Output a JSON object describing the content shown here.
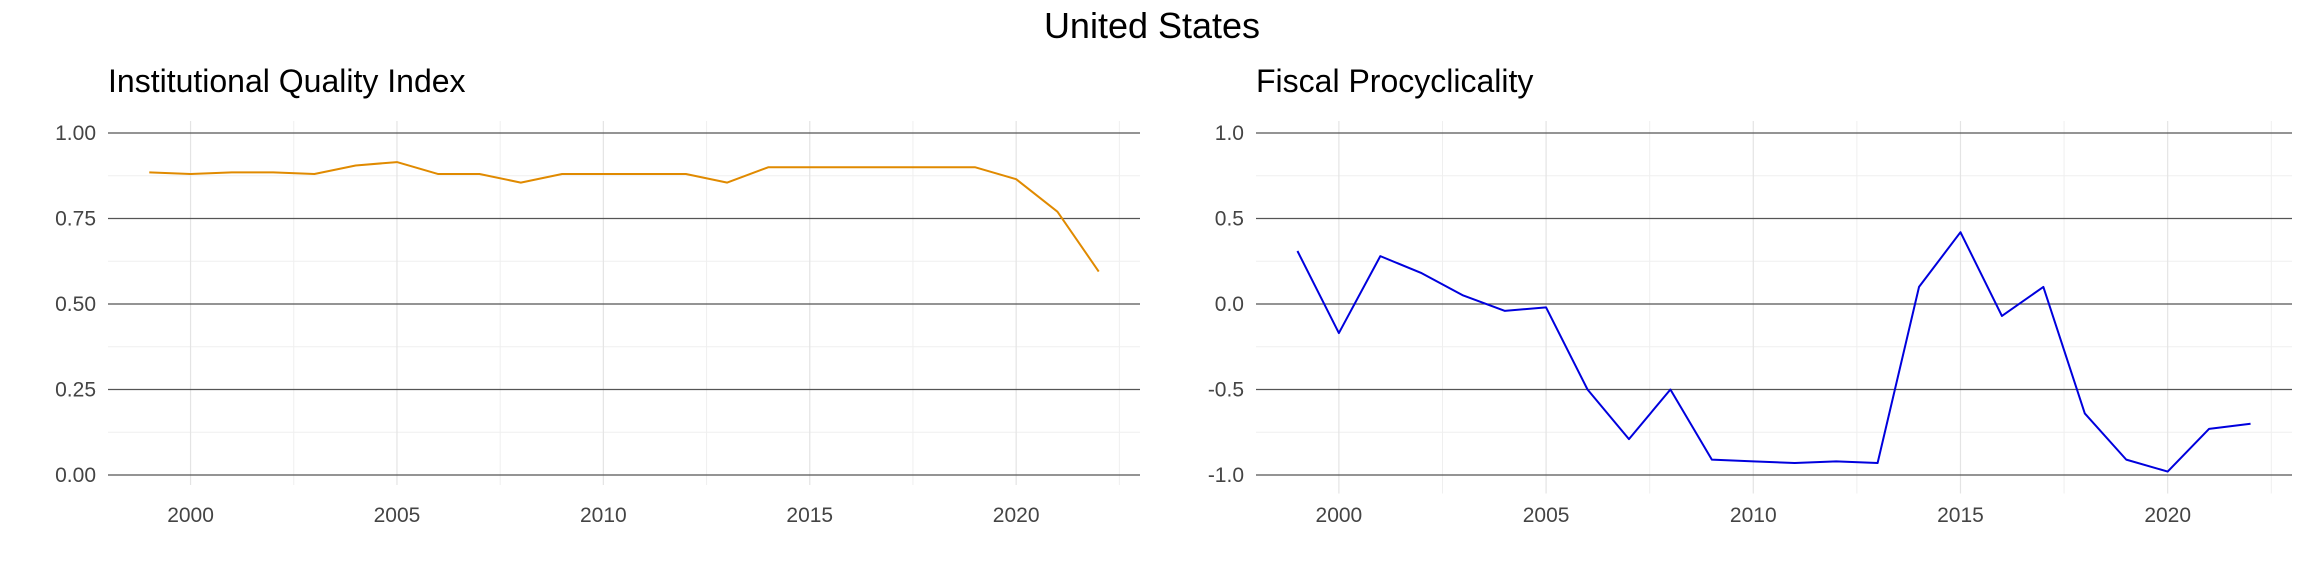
{
  "figure_title": "United States",
  "chart_data": [
    {
      "type": "line",
      "title": "Institutional Quality Index",
      "xlabel": "",
      "ylabel": "",
      "color": "#E08A00",
      "xlim": [
        1998,
        2023
      ],
      "ylim": [
        0,
        1
      ],
      "x_ticks": [
        2000,
        2005,
        2010,
        2015,
        2020
      ],
      "y_ticks": [
        0,
        0.25,
        0.5,
        0.75,
        1
      ],
      "y_tick_labels": [
        "0.00",
        "0.25",
        "0.50",
        "0.75",
        "1.00"
      ],
      "grid": true,
      "x": [
        1999,
        2000,
        2001,
        2002,
        2003,
        2004,
        2005,
        2006,
        2007,
        2008,
        2009,
        2010,
        2011,
        2012,
        2013,
        2014,
        2015,
        2016,
        2017,
        2018,
        2019,
        2020,
        2021,
        2022
      ],
      "y": [
        0.885,
        0.88,
        0.885,
        0.885,
        0.88,
        0.905,
        0.915,
        0.88,
        0.88,
        0.855,
        0.88,
        0.88,
        0.88,
        0.88,
        0.855,
        0.9,
        0.9,
        0.9,
        0.9,
        0.9,
        0.9,
        0.865,
        0.77,
        0.595
      ]
    },
    {
      "type": "line",
      "title": "Fiscal Procyclicality",
      "xlabel": "",
      "ylabel": "",
      "color": "#0000DD",
      "xlim": [
        1998,
        2023
      ],
      "ylim": [
        -1.05,
        1.0
      ],
      "x_ticks": [
        2000,
        2005,
        2010,
        2015,
        2020
      ],
      "y_ticks": [
        -1,
        -0.5,
        0,
        0.5,
        1
      ],
      "y_tick_labels": [
        "-1.0",
        "-0.5",
        "0.0",
        "0.5",
        "1.0"
      ],
      "grid": true,
      "x": [
        1999,
        2000,
        2001,
        2002,
        2003,
        2004,
        2005,
        2006,
        2007,
        2008,
        2009,
        2010,
        2011,
        2012,
        2013,
        2014,
        2015,
        2016,
        2017,
        2018,
        2019,
        2020,
        2021,
        2022
      ],
      "y": [
        0.31,
        -0.17,
        0.28,
        0.18,
        0.05,
        -0.04,
        -0.02,
        -0.5,
        -0.79,
        -0.5,
        -0.91,
        -0.92,
        -0.93,
        -0.92,
        -0.93,
        0.1,
        0.42,
        -0.07,
        0.1,
        -0.64,
        -0.91,
        -0.98,
        -0.73,
        -0.7
      ]
    }
  ]
}
